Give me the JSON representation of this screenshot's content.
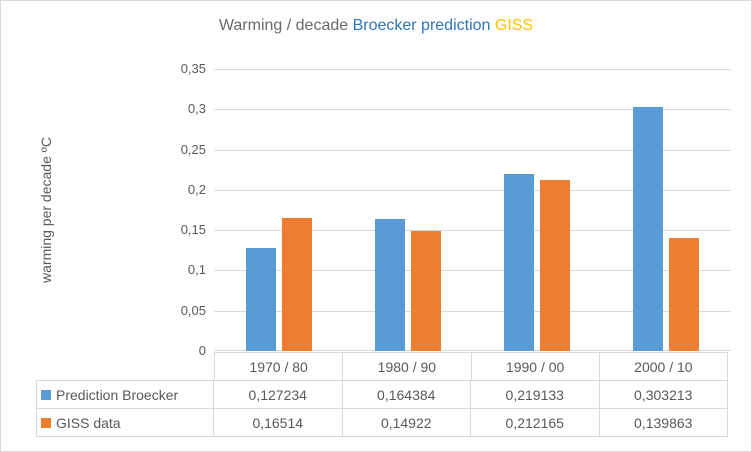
{
  "title": {
    "segments": [
      {
        "text": "Warming / decade ",
        "color": "#6a6a6a"
      },
      {
        "text": "Broecker prediction",
        "color": "#2e75b6"
      },
      {
        "text": " GISS",
        "color": "#ffc000"
      }
    ]
  },
  "chart_data": {
    "type": "bar",
    "title": "Warming / decade Broecker prediction GISS",
    "categories": [
      "1970 / 80",
      "1980 / 90",
      "1990 / 00",
      "2000 / 10"
    ],
    "series": [
      {
        "name": "Prediction Broecker",
        "color": "#5b9bd5",
        "values": [
          0.127234,
          0.164384,
          0.219133,
          0.303213
        ],
        "labels": [
          "0,127234",
          "0,164384",
          "0,219133",
          "0,303213"
        ]
      },
      {
        "name": "GISS data",
        "color": "#ed7d31",
        "values": [
          0.16514,
          0.14922,
          0.212165,
          0.139863
        ],
        "labels": [
          "0,16514",
          "0,14922",
          "0,212165",
          "0,139863"
        ]
      }
    ],
    "xlabel": "",
    "ylabel": "warming per decade ºC",
    "ylim": [
      0,
      0.35
    ],
    "ytick_step": 0.05,
    "yticks": [
      {
        "value": 0.35,
        "label": "0,35"
      },
      {
        "value": 0.3,
        "label": "0,3"
      },
      {
        "value": 0.25,
        "label": "0,25"
      },
      {
        "value": 0.2,
        "label": "0,2"
      },
      {
        "value": 0.15,
        "label": "0,15"
      },
      {
        "value": 0.1,
        "label": "0,1"
      },
      {
        "value": 0.05,
        "label": "0,05"
      },
      {
        "value": 0,
        "label": "0"
      }
    ],
    "grid": "horizontal-only",
    "legend_position": "data-table-left",
    "data_table_shown": true
  },
  "palette": {
    "grid_line": "#d9d9d9",
    "table_border": "#d9d9d9",
    "axis_text": "#595959",
    "frame_border": "#d9d9d9",
    "background": "#ffffff"
  }
}
